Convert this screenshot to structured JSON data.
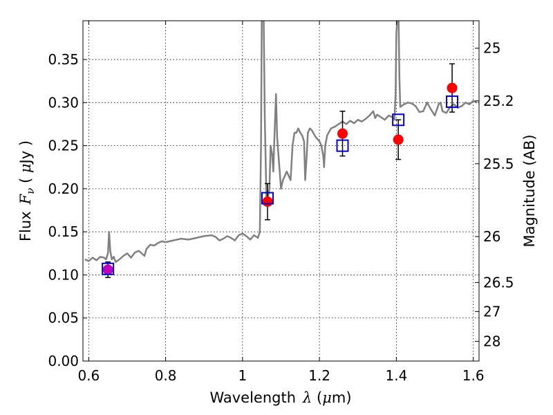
{
  "chart_data": {
    "type": "scatter",
    "xlabel": {
      "prefix": "Wavelength",
      "symbol": "λ",
      "unit_open": " (",
      "unit_symbol": "μ",
      "unit_rest": "m)"
    },
    "ylabel": {
      "prefix": "Flux",
      "symbol": "F",
      "subscript": "ν",
      "unit_open": " ( ",
      "unit_symbol": "μ",
      "unit_rest": "Jy )"
    },
    "y2label": "Magnitude (AB)",
    "xlim": [
      0.585,
      1.615
    ],
    "ylim": [
      0.0,
      0.395
    ],
    "grid": true,
    "x_ticks": [
      {
        "value": 0.6,
        "label": "0.6"
      },
      {
        "value": 0.8,
        "label": "0.8"
      },
      {
        "value": 1.0,
        "label": "1"
      },
      {
        "value": 1.2,
        "label": "1.2"
      },
      {
        "value": 1.4,
        "label": "1.4"
      },
      {
        "value": 1.6,
        "label": "1.6"
      }
    ],
    "y_ticks": [
      {
        "value": 0.0,
        "label": "0.00"
      },
      {
        "value": 0.05,
        "label": "0.05"
      },
      {
        "value": 0.1,
        "label": "0.10"
      },
      {
        "value": 0.15,
        "label": "0.15"
      },
      {
        "value": 0.2,
        "label": "0.20"
      },
      {
        "value": 0.25,
        "label": "0.25"
      },
      {
        "value": 0.3,
        "label": "0.30"
      },
      {
        "value": 0.35,
        "label": "0.35"
      }
    ],
    "y2_ticks": [
      {
        "label": "25",
        "flux": 0.3631
      },
      {
        "label": "25.2",
        "flux": 0.302
      },
      {
        "label": "25.5",
        "flux": 0.229
      },
      {
        "label": "26",
        "flux": 0.1445
      },
      {
        "label": "26.5",
        "flux": 0.0912
      },
      {
        "label": "27",
        "flux": 0.0575
      },
      {
        "label": "28",
        "flux": 0.0229
      }
    ],
    "series": [
      {
        "kind": "spectrum",
        "color": "#808080",
        "points": [
          [
            0.59,
            0.118
          ],
          [
            0.6,
            0.116
          ],
          [
            0.61,
            0.12
          ],
          [
            0.62,
            0.117
          ],
          [
            0.63,
            0.121
          ],
          [
            0.64,
            0.12
          ],
          [
            0.645,
            0.118
          ],
          [
            0.65,
            0.125
          ],
          [
            0.653,
            0.15
          ],
          [
            0.656,
            0.128
          ],
          [
            0.66,
            0.118
          ],
          [
            0.665,
            0.121
          ],
          [
            0.67,
            0.115
          ],
          [
            0.68,
            0.118
          ],
          [
            0.69,
            0.122
          ],
          [
            0.7,
            0.125
          ],
          [
            0.71,
            0.12
          ],
          [
            0.72,
            0.126
          ],
          [
            0.73,
            0.128
          ],
          [
            0.74,
            0.124
          ],
          [
            0.745,
            0.122
          ],
          [
            0.75,
            0.13
          ],
          [
            0.76,
            0.135
          ],
          [
            0.77,
            0.134
          ],
          [
            0.78,
            0.137
          ],
          [
            0.79,
            0.139
          ],
          [
            0.8,
            0.138
          ],
          [
            0.82,
            0.14
          ],
          [
            0.84,
            0.142
          ],
          [
            0.86,
            0.141
          ],
          [
            0.88,
            0.143
          ],
          [
            0.9,
            0.145
          ],
          [
            0.92,
            0.146
          ],
          [
            0.93,
            0.144
          ],
          [
            0.94,
            0.14
          ],
          [
            0.95,
            0.142
          ],
          [
            0.96,
            0.145
          ],
          [
            0.97,
            0.143
          ],
          [
            0.98,
            0.14
          ],
          [
            0.99,
            0.146
          ],
          [
            1.0,
            0.148
          ],
          [
            1.01,
            0.145
          ],
          [
            1.02,
            0.141
          ],
          [
            1.03,
            0.146
          ],
          [
            1.04,
            0.143
          ],
          [
            1.045,
            0.15
          ],
          [
            1.048,
            0.25
          ],
          [
            1.05,
            0.395
          ],
          [
            1.055,
            0.395
          ],
          [
            1.058,
            0.28
          ],
          [
            1.062,
            0.19
          ],
          [
            1.066,
            0.19
          ],
          [
            1.07,
            0.2
          ],
          [
            1.073,
            0.25
          ],
          [
            1.077,
            0.24
          ],
          [
            1.08,
            0.22
          ],
          [
            1.083,
            0.26
          ],
          [
            1.087,
            0.31
          ],
          [
            1.09,
            0.26
          ],
          [
            1.095,
            0.23
          ],
          [
            1.1,
            0.2
          ],
          [
            1.105,
            0.21
          ],
          [
            1.11,
            0.215
          ],
          [
            1.115,
            0.22
          ],
          [
            1.12,
            0.215
          ],
          [
            1.125,
            0.21
          ],
          [
            1.13,
            0.25
          ],
          [
            1.135,
            0.265
          ],
          [
            1.14,
            0.265
          ],
          [
            1.145,
            0.27
          ],
          [
            1.15,
            0.265
          ],
          [
            1.155,
            0.262
          ],
          [
            1.16,
            0.255
          ],
          [
            1.163,
            0.21
          ],
          [
            1.167,
            0.24
          ],
          [
            1.17,
            0.265
          ],
          [
            1.175,
            0.27
          ],
          [
            1.18,
            0.268
          ],
          [
            1.19,
            0.26
          ],
          [
            1.2,
            0.255
          ],
          [
            1.205,
            0.25
          ],
          [
            1.21,
            0.238
          ],
          [
            1.212,
            0.225
          ],
          [
            1.215,
            0.25
          ],
          [
            1.22,
            0.262
          ],
          [
            1.23,
            0.27
          ],
          [
            1.24,
            0.272
          ],
          [
            1.25,
            0.275
          ],
          [
            1.26,
            0.278
          ],
          [
            1.27,
            0.275
          ],
          [
            1.28,
            0.279
          ],
          [
            1.29,
            0.276
          ],
          [
            1.3,
            0.28
          ],
          [
            1.31,
            0.278
          ],
          [
            1.32,
            0.281
          ],
          [
            1.33,
            0.285
          ],
          [
            1.34,
            0.29
          ],
          [
            1.345,
            0.282
          ],
          [
            1.35,
            0.286
          ],
          [
            1.36,
            0.283
          ],
          [
            1.37,
            0.28
          ],
          [
            1.38,
            0.285
          ],
          [
            1.39,
            0.283
          ],
          [
            1.395,
            0.28
          ],
          [
            1.398,
            0.31
          ],
          [
            1.4,
            0.38
          ],
          [
            1.402,
            0.395
          ],
          [
            1.406,
            0.395
          ],
          [
            1.408,
            0.33
          ],
          [
            1.41,
            0.295
          ],
          [
            1.42,
            0.298
          ],
          [
            1.43,
            0.3
          ],
          [
            1.44,
            0.299
          ],
          [
            1.45,
            0.296
          ],
          [
            1.46,
            0.289
          ],
          [
            1.47,
            0.29
          ],
          [
            1.48,
            0.3
          ],
          [
            1.49,
            0.292
          ],
          [
            1.5,
            0.285
          ],
          [
            1.51,
            0.298
          ],
          [
            1.515,
            0.3
          ],
          [
            1.52,
            0.29
          ],
          [
            1.53,
            0.288
          ],
          [
            1.54,
            0.295
          ],
          [
            1.55,
            0.298
          ],
          [
            1.56,
            0.294
          ],
          [
            1.57,
            0.296
          ],
          [
            1.58,
            0.3
          ],
          [
            1.59,
            0.298
          ],
          [
            1.6,
            0.302
          ],
          [
            1.61,
            0.3
          ]
        ]
      },
      {
        "kind": "observed",
        "marker": "filled-circle",
        "color": "#ff0000",
        "highlight_first_color": "#c000c0",
        "points": [
          {
            "x": 0.65,
            "y": 0.106,
            "err": 0.009
          },
          {
            "x": 1.065,
            "y": 0.185,
            "err": 0.021
          },
          {
            "x": 1.26,
            "y": 0.264,
            "err": 0.026
          },
          {
            "x": 1.405,
            "y": 0.257,
            "err": 0.023
          },
          {
            "x": 1.545,
            "y": 0.317,
            "err": 0.028
          }
        ]
      },
      {
        "kind": "model",
        "marker": "open-square",
        "color": "#0000cc",
        "points": [
          {
            "x": 0.65,
            "y": 0.107
          },
          {
            "x": 1.065,
            "y": 0.189
          },
          {
            "x": 1.26,
            "y": 0.25
          },
          {
            "x": 1.405,
            "y": 0.28
          },
          {
            "x": 1.545,
            "y": 0.301
          }
        ]
      }
    ]
  }
}
